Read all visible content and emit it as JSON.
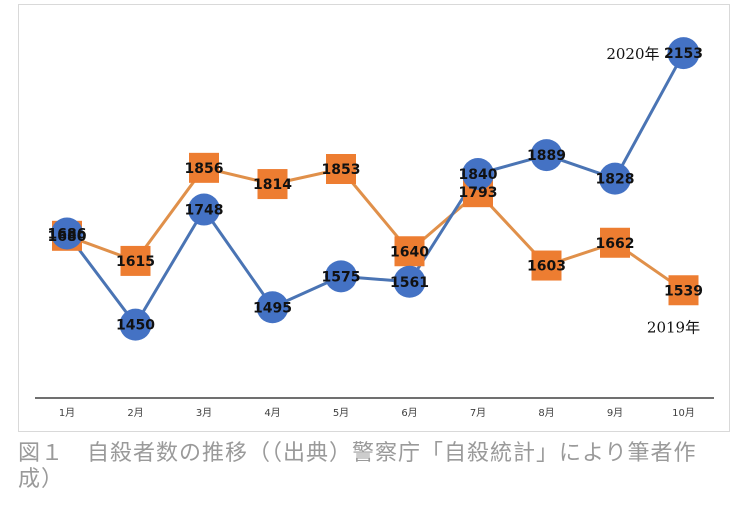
{
  "chart_data": {
    "type": "line",
    "categories": [
      "1月",
      "2月",
      "3月",
      "4月",
      "5月",
      "6月",
      "7月",
      "8月",
      "9月",
      "10月"
    ],
    "series": [
      {
        "name": "2019年",
        "values": [
          1680,
          1615,
          1856,
          1814,
          1853,
          1640,
          1793,
          1603,
          1662,
          1539
        ],
        "line_color": "#E0904A",
        "marker": "square",
        "marker_color": "#ED7D31"
      },
      {
        "name": "2020年",
        "values": [
          1686,
          1450,
          1748,
          1495,
          1575,
          1561,
          1840,
          1889,
          1828,
          2153
        ],
        "line_color": "#4A74B4",
        "marker": "circle",
        "marker_color": "#4472C4"
      }
    ],
    "ylim": [
      1260,
      2200
    ],
    "grid": false,
    "legend": "series names shown as text next to last points"
  },
  "caption": "図１　自殺者数の推移（（出典）警察庁「自殺統計」により筆者作成）"
}
